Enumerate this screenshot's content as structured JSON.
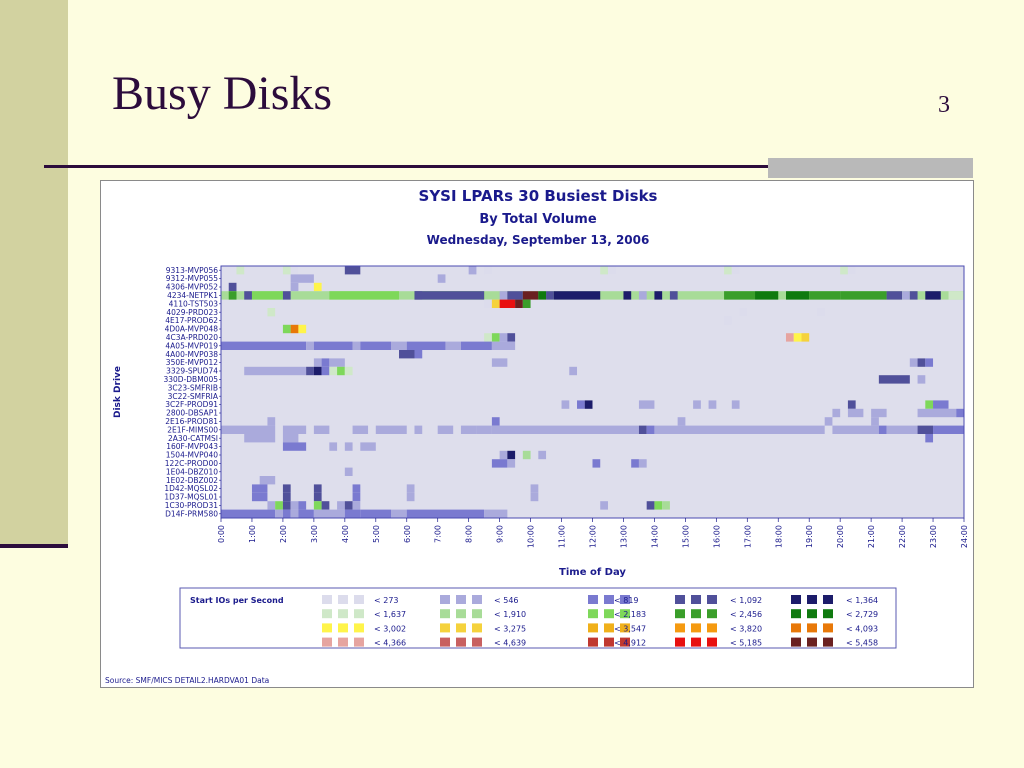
{
  "slide": {
    "title": "Busy Disks",
    "slide_number": "3"
  },
  "colors": {
    "background": "#fdfde0",
    "accent": "#2c0c3c",
    "band": "#d2d2a0",
    "chart_title": "#1a1a8c"
  },
  "chart_data": {
    "type": "heatmap",
    "title": "SYSI LPARs 30 Busiest Disks",
    "subtitle": "By Total Volume",
    "date_line": "Wednesday, September 13, 2006",
    "xlabel": "Time of Day",
    "ylabel": "Disk Drive",
    "x_ticks": [
      "0:00",
      "1:00",
      "2:00",
      "3:00",
      "4:00",
      "5:00",
      "6:00",
      "7:00",
      "8:00",
      "9:00",
      "10:00",
      "11:00",
      "12:00",
      "13:00",
      "14:00",
      "15:00",
      "16:00",
      "17:00",
      "18:00",
      "19:00",
      "20:00",
      "21:00",
      "22:00",
      "23:00",
      "24:00"
    ],
    "xlim": [
      0,
      24
    ],
    "cell_hours": 0.25,
    "disks": [
      "9313-MVP056",
      "9312-MVP055",
      "4306-MVP052",
      "4234-NETPK1",
      "4110-TST503",
      "4029-PRD023",
      "4E17-PROD62",
      "4D0A-MVP048",
      "4C3A-PRD020",
      "4A05-MVP019",
      "4A00-MVP038",
      "350E-MVP012",
      "3329-SPUD74",
      "330D-DBM005",
      "3C23-SMFRIB",
      "3C22-SMFRIA",
      "3C2F-PROD91",
      "2800-DBSAP1",
      "2E16-PROD81",
      "2E1F-MIMS00",
      "2A30-CATMSI",
      "160F-MVP043",
      "1504-MVP040",
      "122C-PROD00",
      "1E04-DBZ010",
      "1E02-DBZ002",
      "1D42-MQSL02",
      "1D37-MQSL01",
      "1C30-PROD31",
      "D14F-PRM580"
    ],
    "legend": {
      "title": "Start IOs per Second",
      "bins": [
        {
          "label": "< 273",
          "color": "#dcdcec"
        },
        {
          "label": "< 546",
          "color": "#aaaadc"
        },
        {
          "label": "< 819",
          "color": "#7a7ad0"
        },
        {
          "label": "< 1,092",
          "color": "#50509a"
        },
        {
          "label": "< 1,364",
          "color": "#1c1c6a"
        },
        {
          "label": "< 1,637",
          "color": "#cfe8c8"
        },
        {
          "label": "< 1,910",
          "color": "#a8dc98"
        },
        {
          "label": "< 2,183",
          "color": "#7ed85a"
        },
        {
          "label": "< 2,456",
          "color": "#3a9e2a"
        },
        {
          "label": "< 2,729",
          "color": "#0f7a0f"
        },
        {
          "label": "< 3,002",
          "color": "#fff44a"
        },
        {
          "label": "< 3,275",
          "color": "#f5d23c"
        },
        {
          "label": "< 3,547",
          "color": "#f0b01a"
        },
        {
          "label": "< 3,820",
          "color": "#f59a10"
        },
        {
          "label": "< 4,093",
          "color": "#e87808"
        },
        {
          "label": "< 4,366",
          "color": "#e6a4a0"
        },
        {
          "label": "< 4,639",
          "color": "#c86060"
        },
        {
          "label": "< 4,912",
          "color": "#c03830"
        },
        {
          "label": "< 5,185",
          "color": "#e81010"
        },
        {
          "label": "< 5,458",
          "color": "#6a2020"
        }
      ]
    },
    "cells": [
      {
        "d": 0,
        "s": 0.0,
        "e": 24.0,
        "b": -1
      },
      {
        "d": 0,
        "s": 0.5,
        "e": 0.75,
        "b": 5
      },
      {
        "d": 0,
        "s": 2.0,
        "e": 2.25,
        "b": 5
      },
      {
        "d": 0,
        "s": 2.25,
        "e": 2.5,
        "b": 0
      },
      {
        "d": 0,
        "s": 4.0,
        "e": 4.5,
        "b": 3
      },
      {
        "d": 0,
        "s": 8.0,
        "e": 8.25,
        "b": 1
      },
      {
        "d": 0,
        "s": 8.5,
        "e": 8.75,
        "b": 0
      },
      {
        "d": 0,
        "s": 12.25,
        "e": 12.5,
        "b": 5
      },
      {
        "d": 0,
        "s": 12.5,
        "e": 12.75,
        "b": 0
      },
      {
        "d": 0,
        "s": 16.25,
        "e": 16.5,
        "b": 5
      },
      {
        "d": 0,
        "s": 16.5,
        "e": 16.75,
        "b": 0
      },
      {
        "d": 0,
        "s": 20.0,
        "e": 20.25,
        "b": 5
      },
      {
        "d": 0,
        "s": 20.25,
        "e": 20.5,
        "b": 0
      },
      {
        "d": 1,
        "s": 2.25,
        "e": 3.0,
        "b": 1
      },
      {
        "d": 1,
        "s": 7.0,
        "e": 7.25,
        "b": 1
      },
      {
        "d": 2,
        "s": 0.25,
        "e": 0.5,
        "b": 3
      },
      {
        "d": 2,
        "s": 2.25,
        "e": 2.5,
        "b": 1
      },
      {
        "d": 2,
        "s": 3.0,
        "e": 3.25,
        "b": 10
      },
      {
        "d": 3,
        "s": 0.0,
        "e": 24.0,
        "b": 6
      },
      {
        "d": 3,
        "s": 0.25,
        "e": 0.5,
        "b": 8
      },
      {
        "d": 3,
        "s": 0.75,
        "e": 1.0,
        "b": 3
      },
      {
        "d": 3,
        "s": 1.0,
        "e": 2.0,
        "b": 7
      },
      {
        "d": 3,
        "s": 2.0,
        "e": 2.25,
        "b": 3
      },
      {
        "d": 3,
        "s": 3.5,
        "e": 5.75,
        "b": 7
      },
      {
        "d": 3,
        "s": 6.25,
        "e": 6.5,
        "b": 3
      },
      {
        "d": 3,
        "s": 6.5,
        "e": 8.5,
        "b": 7
      },
      {
        "d": 3,
        "s": 6.25,
        "e": 8.5,
        "b": 3
      },
      {
        "d": 3,
        "s": 9.0,
        "e": 9.25,
        "b": 1
      },
      {
        "d": 3,
        "s": 9.25,
        "e": 9.75,
        "b": 3
      },
      {
        "d": 3,
        "s": 9.75,
        "e": 10.25,
        "b": 19
      },
      {
        "d": 3,
        "s": 10.25,
        "e": 10.5,
        "b": 9
      },
      {
        "d": 3,
        "s": 10.5,
        "e": 10.75,
        "b": 3
      },
      {
        "d": 3,
        "s": 10.75,
        "e": 12.25,
        "b": 4
      },
      {
        "d": 3,
        "s": 13.0,
        "e": 13.25,
        "b": 4
      },
      {
        "d": 3,
        "s": 13.5,
        "e": 13.75,
        "b": 1
      },
      {
        "d": 3,
        "s": 14.0,
        "e": 14.25,
        "b": 4
      },
      {
        "d": 3,
        "s": 14.5,
        "e": 14.75,
        "b": 3
      },
      {
        "d": 3,
        "s": 16.25,
        "e": 17.25,
        "b": 8
      },
      {
        "d": 3,
        "s": 17.25,
        "e": 18.0,
        "b": 9
      },
      {
        "d": 3,
        "s": 18.25,
        "e": 19.0,
        "b": 9
      },
      {
        "d": 3,
        "s": 19.0,
        "e": 20.0,
        "b": 8
      },
      {
        "d": 3,
        "s": 20.0,
        "e": 21.5,
        "b": 8
      },
      {
        "d": 3,
        "s": 21.5,
        "e": 22.0,
        "b": 3
      },
      {
        "d": 3,
        "s": 22.0,
        "e": 22.25,
        "b": 1
      },
      {
        "d": 3,
        "s": 22.25,
        "e": 22.5,
        "b": 3
      },
      {
        "d": 3,
        "s": 22.75,
        "e": 23.25,
        "b": 4
      },
      {
        "d": 3,
        "s": 23.5,
        "e": 24.0,
        "b": 5
      },
      {
        "d": 4,
        "s": 8.5,
        "e": 8.75,
        "b": 0
      },
      {
        "d": 4,
        "s": 8.75,
        "e": 9.0,
        "b": 11
      },
      {
        "d": 4,
        "s": 9.0,
        "e": 9.5,
        "b": 18
      },
      {
        "d": 4,
        "s": 9.5,
        "e": 9.75,
        "b": 19
      },
      {
        "d": 4,
        "s": 9.75,
        "e": 10.0,
        "b": 8
      },
      {
        "d": 5,
        "s": 1.5,
        "e": 1.75,
        "b": 5
      },
      {
        "d": 5,
        "s": 16.75,
        "e": 17.0,
        "b": 0
      },
      {
        "d": 5,
        "s": 19.25,
        "e": 19.5,
        "b": 0
      },
      {
        "d": 6,
        "s": 16.25,
        "e": 16.5,
        "b": 0
      },
      {
        "d": 7,
        "s": 2.0,
        "e": 2.25,
        "b": 7
      },
      {
        "d": 7,
        "s": 2.25,
        "e": 2.5,
        "b": 14
      },
      {
        "d": 7,
        "s": 2.5,
        "e": 2.75,
        "b": 10
      },
      {
        "d": 8,
        "s": 8.5,
        "e": 8.75,
        "b": 5
      },
      {
        "d": 8,
        "s": 8.75,
        "e": 9.0,
        "b": 7
      },
      {
        "d": 8,
        "s": 9.0,
        "e": 9.25,
        "b": 1
      },
      {
        "d": 8,
        "s": 9.25,
        "e": 9.5,
        "b": 3
      },
      {
        "d": 8,
        "s": 18.25,
        "e": 18.5,
        "b": 15
      },
      {
        "d": 8,
        "s": 18.5,
        "e": 18.75,
        "b": 10
      },
      {
        "d": 8,
        "s": 18.75,
        "e": 19.0,
        "b": 11
      },
      {
        "d": 9,
        "s": 0.0,
        "e": 2.75,
        "b": 2
      },
      {
        "d": 9,
        "s": 2.75,
        "e": 3.0,
        "b": 1
      },
      {
        "d": 9,
        "s": 3.0,
        "e": 4.25,
        "b": 2
      },
      {
        "d": 9,
        "s": 4.25,
        "e": 4.5,
        "b": 1
      },
      {
        "d": 9,
        "s": 4.5,
        "e": 5.5,
        "b": 2
      },
      {
        "d": 9,
        "s": 5.5,
        "e": 6.0,
        "b": 1
      },
      {
        "d": 9,
        "s": 6.0,
        "e": 7.25,
        "b": 2
      },
      {
        "d": 9,
        "s": 7.25,
        "e": 7.75,
        "b": 1
      },
      {
        "d": 9,
        "s": 7.75,
        "e": 8.75,
        "b": 2
      },
      {
        "d": 9,
        "s": 8.75,
        "e": 9.5,
        "b": 1
      },
      {
        "d": 10,
        "s": 5.75,
        "e": 6.25,
        "b": 3
      },
      {
        "d": 10,
        "s": 6.25,
        "e": 6.5,
        "b": 2
      },
      {
        "d": 11,
        "s": 3.0,
        "e": 3.25,
        "b": 1
      },
      {
        "d": 11,
        "s": 3.25,
        "e": 3.5,
        "b": 2
      },
      {
        "d": 11,
        "s": 3.5,
        "e": 4.0,
        "b": 1
      },
      {
        "d": 11,
        "s": 8.75,
        "e": 9.25,
        "b": 1
      },
      {
        "d": 11,
        "s": 22.25,
        "e": 22.5,
        "b": 1
      },
      {
        "d": 11,
        "s": 22.5,
        "e": 22.75,
        "b": 3
      },
      {
        "d": 11,
        "s": 22.75,
        "e": 23.0,
        "b": 2
      },
      {
        "d": 12,
        "s": 0.75,
        "e": 2.75,
        "b": 1
      },
      {
        "d": 12,
        "s": 2.75,
        "e": 3.0,
        "b": 3
      },
      {
        "d": 12,
        "s": 3.0,
        "e": 3.25,
        "b": 4
      },
      {
        "d": 12,
        "s": 3.25,
        "e": 3.5,
        "b": 2
      },
      {
        "d": 12,
        "s": 3.5,
        "e": 3.75,
        "b": 5
      },
      {
        "d": 12,
        "s": 3.75,
        "e": 4.0,
        "b": 7
      },
      {
        "d": 12,
        "s": 4.0,
        "e": 4.25,
        "b": 5
      },
      {
        "d": 12,
        "s": 11.25,
        "e": 11.5,
        "b": 1
      },
      {
        "d": 13,
        "s": 21.25,
        "e": 22.25,
        "b": 3
      },
      {
        "d": 13,
        "s": 22.5,
        "e": 22.75,
        "b": 1
      },
      {
        "d": 16,
        "s": 11.0,
        "e": 11.25,
        "b": 1
      },
      {
        "d": 16,
        "s": 11.5,
        "e": 11.75,
        "b": 2
      },
      {
        "d": 16,
        "s": 11.75,
        "e": 12.0,
        "b": 4
      },
      {
        "d": 16,
        "s": 13.5,
        "e": 14.0,
        "b": 1
      },
      {
        "d": 16,
        "s": 15.25,
        "e": 15.5,
        "b": 1
      },
      {
        "d": 16,
        "s": 15.75,
        "e": 16.0,
        "b": 1
      },
      {
        "d": 16,
        "s": 16.5,
        "e": 16.75,
        "b": 1
      },
      {
        "d": 16,
        "s": 20.25,
        "e": 20.5,
        "b": 3
      },
      {
        "d": 16,
        "s": 22.75,
        "e": 23.0,
        "b": 7
      },
      {
        "d": 16,
        "s": 23.0,
        "e": 23.5,
        "b": 2
      },
      {
        "d": 17,
        "s": 19.75,
        "e": 20.0,
        "b": 1
      },
      {
        "d": 17,
        "s": 20.25,
        "e": 20.75,
        "b": 1
      },
      {
        "d": 17,
        "s": 21.0,
        "e": 21.5,
        "b": 1
      },
      {
        "d": 17,
        "s": 22.5,
        "e": 23.75,
        "b": 1
      },
      {
        "d": 17,
        "s": 23.75,
        "e": 24.0,
        "b": 2
      },
      {
        "d": 18,
        "s": 1.5,
        "e": 1.75,
        "b": 1
      },
      {
        "d": 18,
        "s": 8.75,
        "e": 9.0,
        "b": 2
      },
      {
        "d": 18,
        "s": 14.75,
        "e": 15.0,
        "b": 1
      },
      {
        "d": 18,
        "s": 19.5,
        "e": 19.75,
        "b": 1
      },
      {
        "d": 18,
        "s": 21.0,
        "e": 21.25,
        "b": 1
      },
      {
        "d": 19,
        "s": 0.0,
        "e": 1.75,
        "b": 1
      },
      {
        "d": 19,
        "s": 2.0,
        "e": 2.75,
        "b": 1
      },
      {
        "d": 19,
        "s": 3.0,
        "e": 3.5,
        "b": 1
      },
      {
        "d": 19,
        "s": 4.25,
        "e": 4.75,
        "b": 1
      },
      {
        "d": 19,
        "s": 5.0,
        "e": 6.0,
        "b": 1
      },
      {
        "d": 19,
        "s": 6.25,
        "e": 6.5,
        "b": 1
      },
      {
        "d": 19,
        "s": 7.0,
        "e": 7.5,
        "b": 1
      },
      {
        "d": 19,
        "s": 7.75,
        "e": 8.25,
        "b": 1
      },
      {
        "d": 19,
        "s": 8.25,
        "e": 8.75,
        "b": 1
      },
      {
        "d": 19,
        "s": 8.75,
        "e": 13.5,
        "b": 1
      },
      {
        "d": 19,
        "s": 13.5,
        "e": 13.75,
        "b": 3
      },
      {
        "d": 19,
        "s": 13.75,
        "e": 14.0,
        "b": 2
      },
      {
        "d": 19,
        "s": 14.0,
        "e": 19.5,
        "b": 1
      },
      {
        "d": 19,
        "s": 19.75,
        "e": 21.25,
        "b": 1
      },
      {
        "d": 19,
        "s": 21.25,
        "e": 21.5,
        "b": 2
      },
      {
        "d": 19,
        "s": 21.5,
        "e": 22.5,
        "b": 1
      },
      {
        "d": 19,
        "s": 22.5,
        "e": 23.0,
        "b": 3
      },
      {
        "d": 19,
        "s": 23.0,
        "e": 24.0,
        "b": 2
      },
      {
        "d": 20,
        "s": 0.75,
        "e": 1.75,
        "b": 1
      },
      {
        "d": 20,
        "s": 2.0,
        "e": 2.5,
        "b": 1
      },
      {
        "d": 20,
        "s": 22.75,
        "e": 23.0,
        "b": 2
      },
      {
        "d": 21,
        "s": 2.0,
        "e": 2.75,
        "b": 2
      },
      {
        "d": 21,
        "s": 3.5,
        "e": 3.75,
        "b": 1
      },
      {
        "d": 21,
        "s": 4.0,
        "e": 4.25,
        "b": 1
      },
      {
        "d": 21,
        "s": 4.5,
        "e": 5.0,
        "b": 1
      },
      {
        "d": 22,
        "s": 9.0,
        "e": 9.25,
        "b": 1
      },
      {
        "d": 22,
        "s": 9.25,
        "e": 9.5,
        "b": 4
      },
      {
        "d": 22,
        "s": 9.75,
        "e": 10.0,
        "b": 6
      },
      {
        "d": 22,
        "s": 10.25,
        "e": 10.5,
        "b": 1
      },
      {
        "d": 23,
        "s": 8.75,
        "e": 9.25,
        "b": 2
      },
      {
        "d": 23,
        "s": 9.25,
        "e": 9.5,
        "b": 1
      },
      {
        "d": 23,
        "s": 12.0,
        "e": 12.25,
        "b": 2
      },
      {
        "d": 23,
        "s": 13.25,
        "e": 13.5,
        "b": 2
      },
      {
        "d": 23,
        "s": 13.5,
        "e": 13.75,
        "b": 1
      },
      {
        "d": 24,
        "s": 4.0,
        "e": 4.25,
        "b": 1
      },
      {
        "d": 25,
        "s": 1.25,
        "e": 1.75,
        "b": 1
      },
      {
        "d": 26,
        "s": 1.0,
        "e": 1.5,
        "b": 2
      },
      {
        "d": 26,
        "s": 2.0,
        "e": 2.25,
        "b": 3
      },
      {
        "d": 26,
        "s": 3.0,
        "e": 3.25,
        "b": 3
      },
      {
        "d": 26,
        "s": 4.25,
        "e": 4.5,
        "b": 2
      },
      {
        "d": 26,
        "s": 6.0,
        "e": 6.25,
        "b": 1
      },
      {
        "d": 26,
        "s": 10.0,
        "e": 10.25,
        "b": 1
      },
      {
        "d": 27,
        "s": 1.0,
        "e": 1.5,
        "b": 2
      },
      {
        "d": 27,
        "s": 2.0,
        "e": 2.25,
        "b": 3
      },
      {
        "d": 27,
        "s": 3.0,
        "e": 3.25,
        "b": 3
      },
      {
        "d": 27,
        "s": 4.25,
        "e": 4.5,
        "b": 2
      },
      {
        "d": 27,
        "s": 6.0,
        "e": 6.25,
        "b": 1
      },
      {
        "d": 27,
        "s": 10.0,
        "e": 10.25,
        "b": 1
      },
      {
        "d": 28,
        "s": 1.5,
        "e": 1.75,
        "b": 1
      },
      {
        "d": 28,
        "s": 1.75,
        "e": 2.0,
        "b": 7
      },
      {
        "d": 28,
        "s": 2.0,
        "e": 2.25,
        "b": 3
      },
      {
        "d": 28,
        "s": 2.25,
        "e": 2.5,
        "b": 1
      },
      {
        "d": 28,
        "s": 2.5,
        "e": 2.75,
        "b": 2
      },
      {
        "d": 28,
        "s": 3.0,
        "e": 3.25,
        "b": 7
      },
      {
        "d": 28,
        "s": 3.25,
        "e": 3.5,
        "b": 3
      },
      {
        "d": 28,
        "s": 3.75,
        "e": 4.0,
        "b": 1
      },
      {
        "d": 28,
        "s": 4.0,
        "e": 4.25,
        "b": 3
      },
      {
        "d": 28,
        "s": 4.25,
        "e": 4.5,
        "b": 1
      },
      {
        "d": 28,
        "s": 12.25,
        "e": 12.5,
        "b": 1
      },
      {
        "d": 28,
        "s": 13.75,
        "e": 14.0,
        "b": 3
      },
      {
        "d": 28,
        "s": 14.0,
        "e": 14.25,
        "b": 7
      },
      {
        "d": 28,
        "s": 14.25,
        "e": 14.5,
        "b": 6
      },
      {
        "d": 29,
        "s": 0.0,
        "e": 1.75,
        "b": 2
      },
      {
        "d": 29,
        "s": 1.75,
        "e": 2.0,
        "b": 1
      },
      {
        "d": 29,
        "s": 2.0,
        "e": 2.25,
        "b": 2
      },
      {
        "d": 29,
        "s": 2.25,
        "e": 2.5,
        "b": 1
      },
      {
        "d": 29,
        "s": 2.5,
        "e": 3.0,
        "b": 2
      },
      {
        "d": 29,
        "s": 3.0,
        "e": 4.0,
        "b": 1
      },
      {
        "d": 29,
        "s": 4.0,
        "e": 4.5,
        "b": 2
      },
      {
        "d": 29,
        "s": 4.5,
        "e": 5.5,
        "b": 2
      },
      {
        "d": 29,
        "s": 5.5,
        "e": 6.0,
        "b": 1
      },
      {
        "d": 29,
        "s": 6.0,
        "e": 8.5,
        "b": 2
      },
      {
        "d": 29,
        "s": 8.5,
        "e": 9.25,
        "b": 1
      }
    ],
    "source": "Source: SMF/MICS DETAIL2.HARDVA01 Data"
  }
}
